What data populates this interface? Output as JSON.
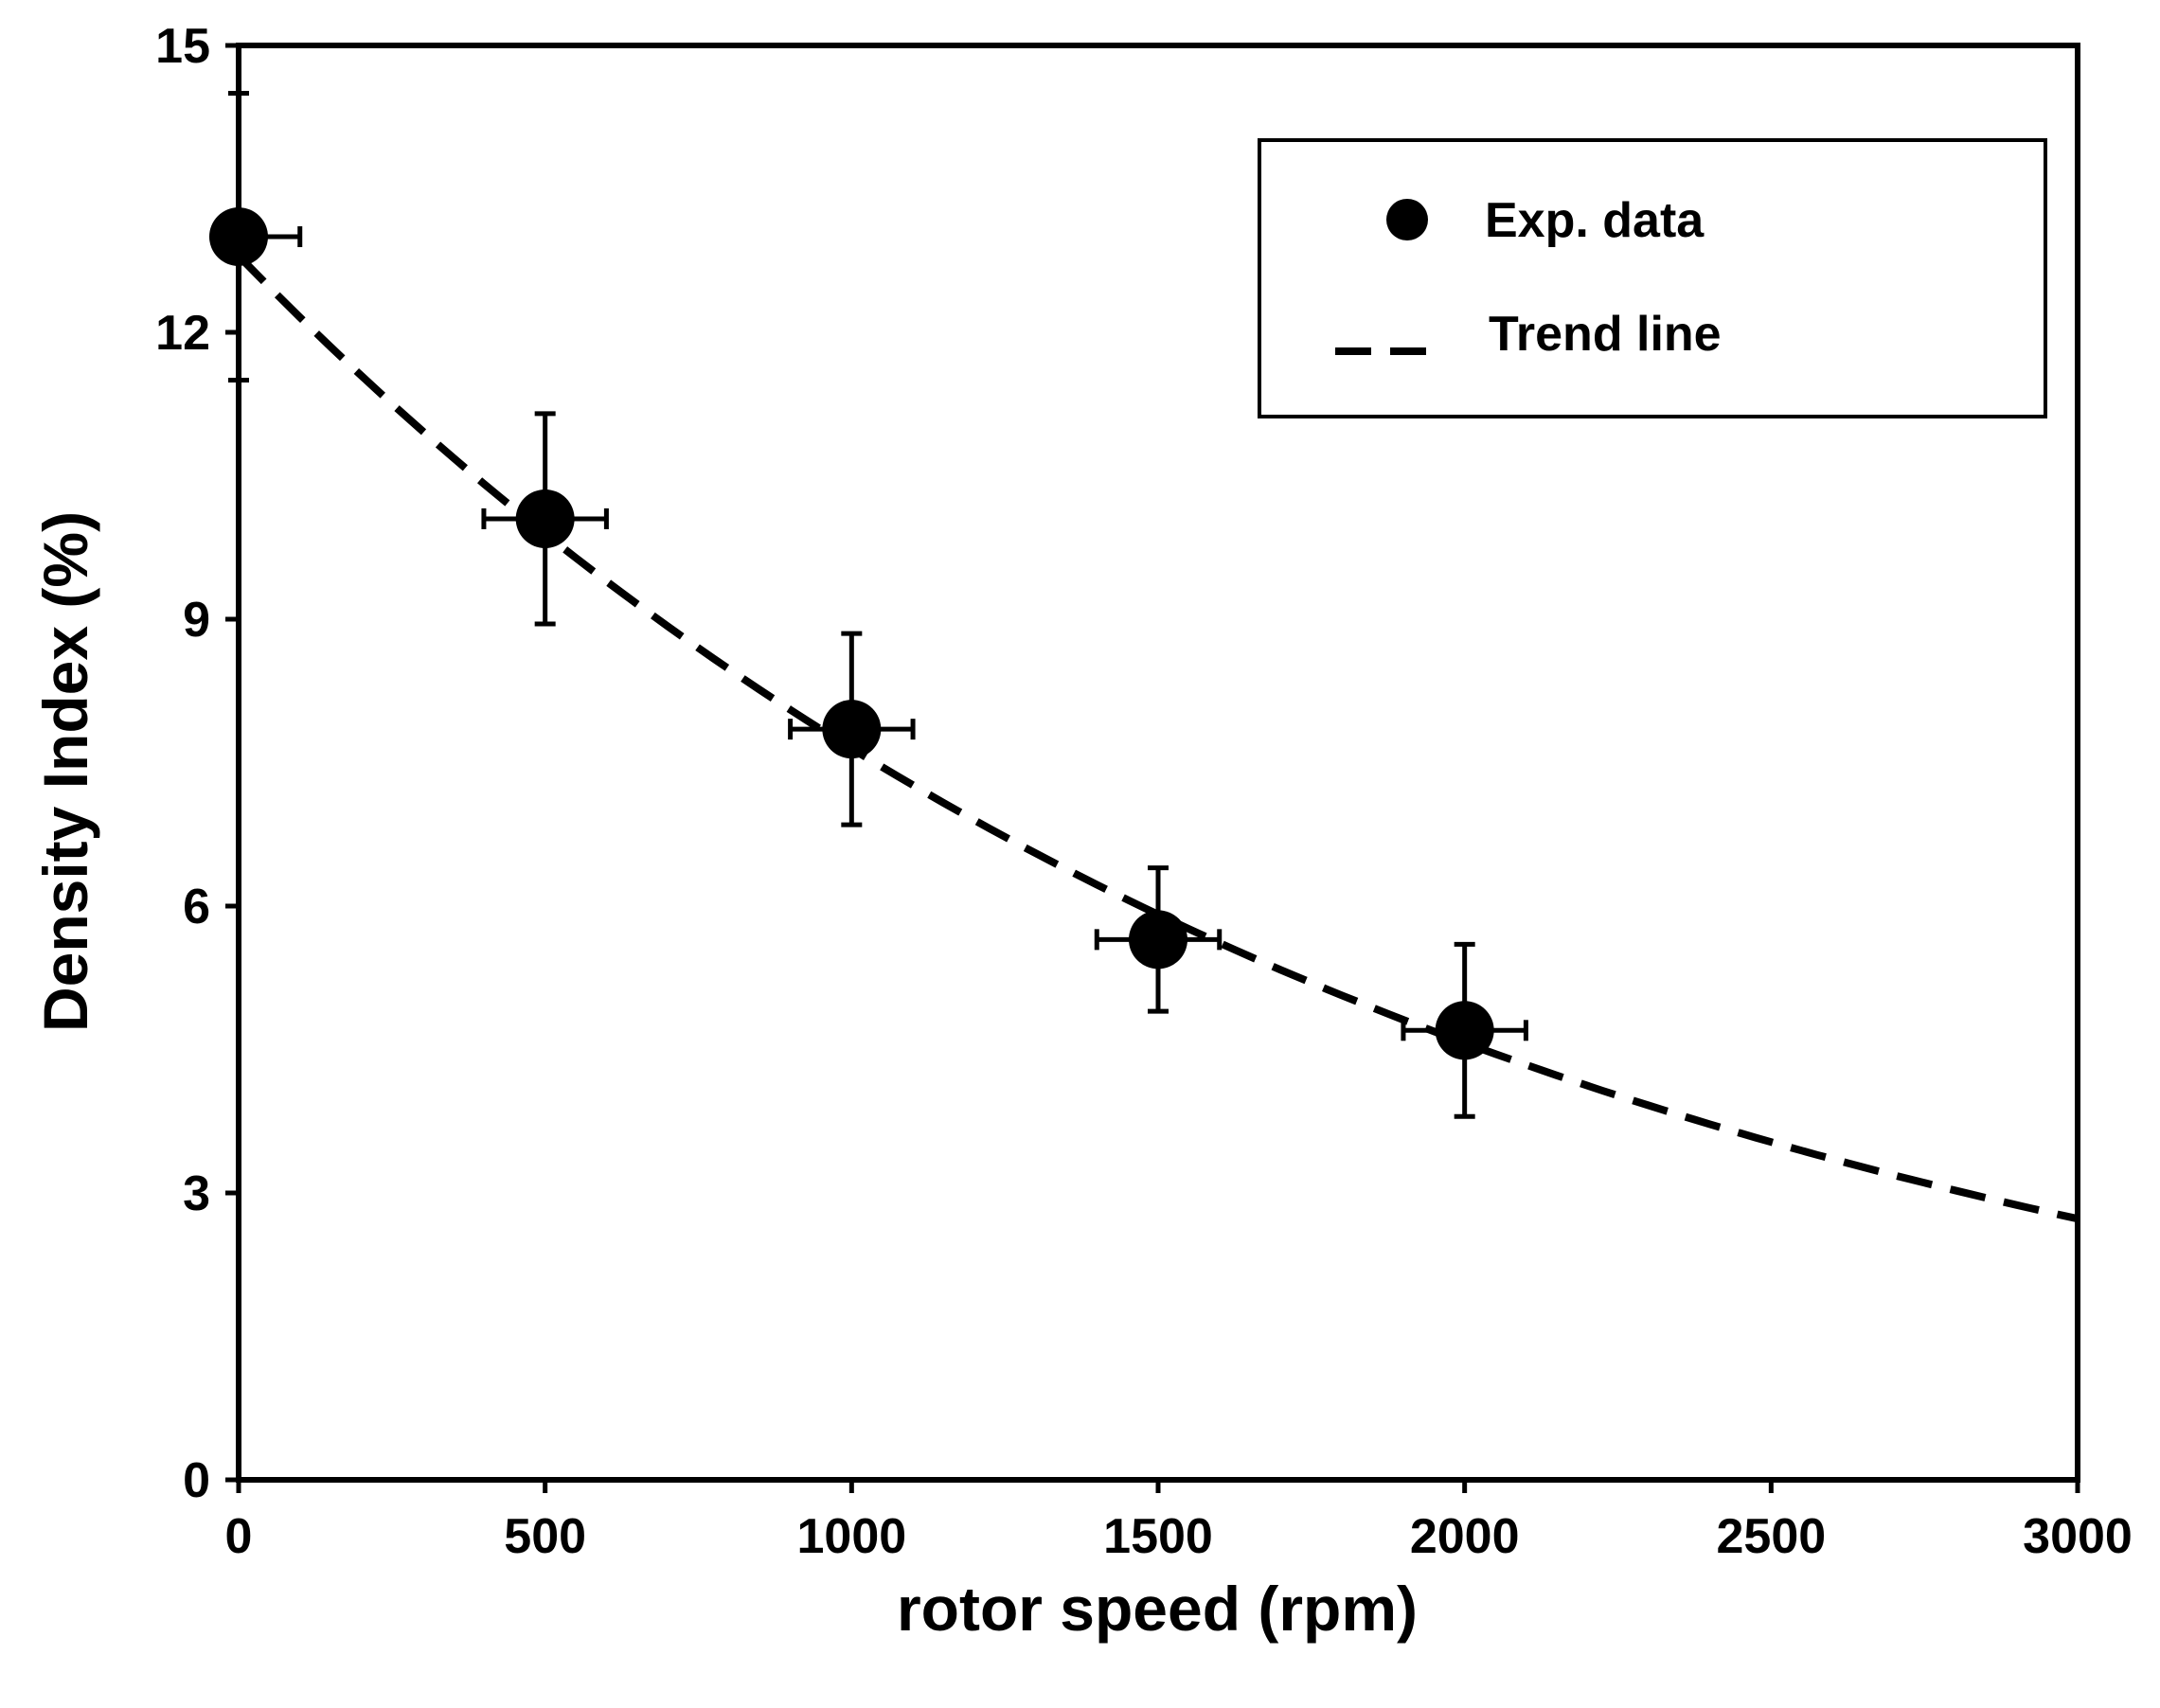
{
  "chart_data": {
    "type": "scatter",
    "title": "",
    "xlabel": "rotor speed (rpm)",
    "ylabel": "Density Index (%)",
    "xlim": [
      0,
      3000
    ],
    "ylim": [
      0,
      15
    ],
    "xticks": [
      0,
      500,
      1000,
      1500,
      2000,
      2500,
      3000
    ],
    "yticks": [
      0,
      3,
      6,
      9,
      12,
      15
    ],
    "grid": false,
    "legend_position": "top-right",
    "series": [
      {
        "name": "Exp. data",
        "kind": "points_with_error_bars",
        "x": [
          0,
          500,
          1000,
          1500,
          2000
        ],
        "y": [
          13.0,
          10.05,
          7.85,
          5.65,
          4.7
        ],
        "y_err": [
          1.5,
          1.1,
          1.0,
          0.75,
          0.9
        ],
        "x_err": [
          100,
          100,
          100,
          100,
          100
        ]
      },
      {
        "name": "Trend line",
        "kind": "dashed_line",
        "model": "exponential",
        "a": 12.8,
        "b": -0.000515,
        "x_range": [
          0,
          3000
        ]
      }
    ],
    "colors": {
      "marker": "#000000",
      "line": "#000000",
      "background": "#ffffff"
    }
  }
}
